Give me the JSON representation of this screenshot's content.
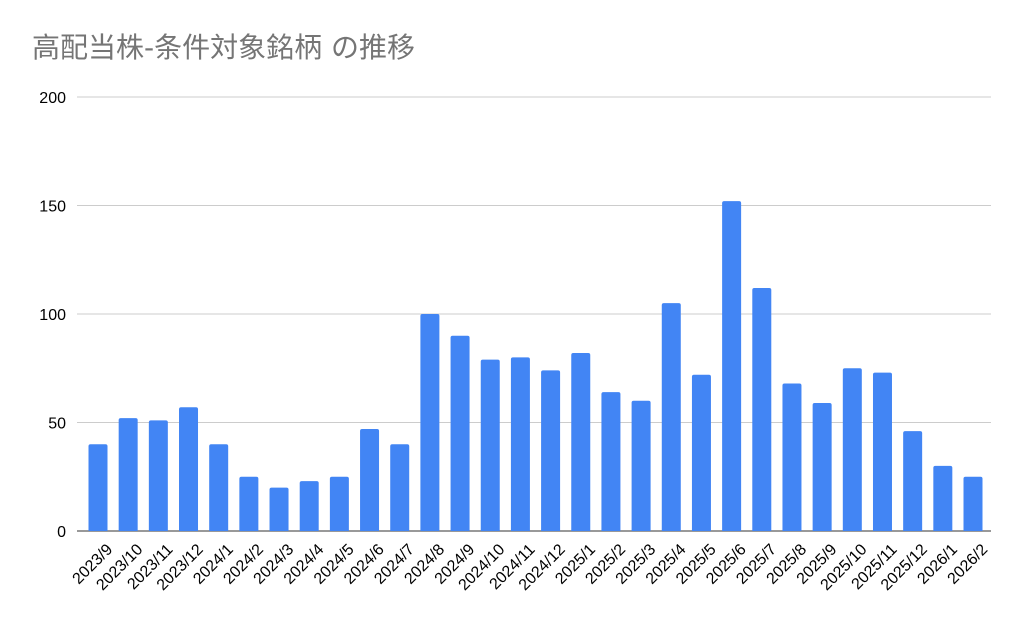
{
  "chart_data": {
    "type": "bar",
    "title": "高配当株-条件対象銘柄 の推移",
    "xlabel": "",
    "ylabel": "",
    "ylim": [
      0,
      200
    ],
    "yticks": [
      0,
      50,
      100,
      150,
      200
    ],
    "grid": true,
    "legend": "none",
    "bar_color": "#4285f4",
    "categories": [
      "2023/9",
      "2023/10",
      "2023/11",
      "2023/12",
      "2024/1",
      "2024/2",
      "2024/3",
      "2024/4",
      "2024/5",
      "2024/6",
      "2024/7",
      "2024/8",
      "2024/9",
      "2024/10",
      "2024/11",
      "2024/12",
      "2025/1",
      "2025/2",
      "2025/3",
      "2025/4",
      "2025/5",
      "2025/6",
      "2025/7",
      "2025/8",
      "2025/9",
      "2025/10",
      "2025/11",
      "2025/12",
      "2026/1",
      "2026/2"
    ],
    "values": [
      40,
      52,
      51,
      57,
      40,
      25,
      20,
      23,
      25,
      47,
      40,
      100,
      90,
      79,
      80,
      74,
      82,
      64,
      60,
      105,
      72,
      152,
      112,
      68,
      59,
      75,
      73,
      46,
      30,
      25
    ]
  }
}
